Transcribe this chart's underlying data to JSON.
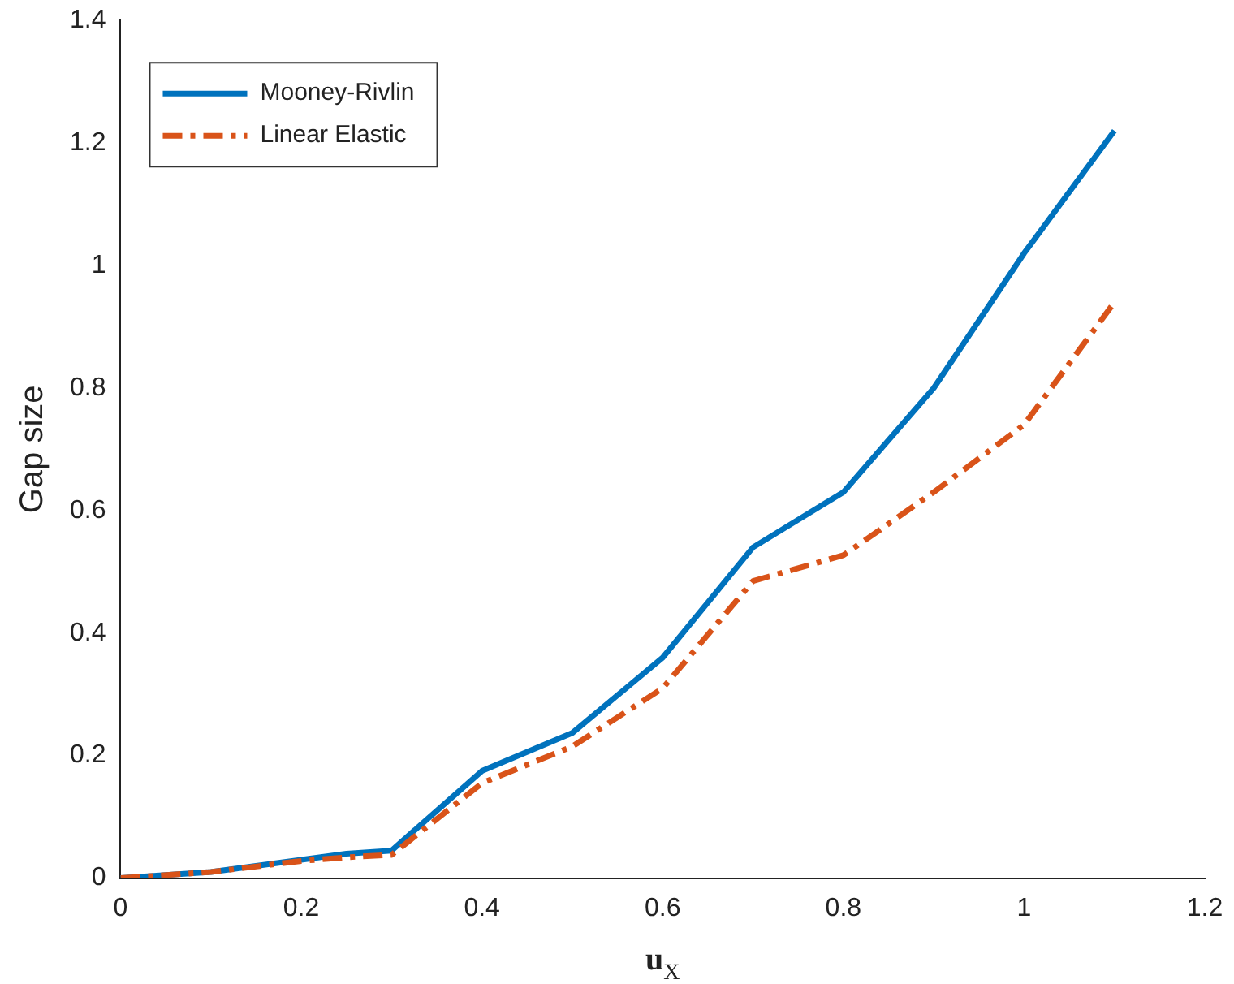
{
  "chart_data": {
    "type": "line",
    "xlabel": "u$_{X}$",
    "ylabel": "Gap size",
    "x": [
      0,
      0.1,
      0.2,
      0.25,
      0.3,
      0.4,
      0.5,
      0.6,
      0.7,
      0.8,
      0.9,
      1.0,
      1.1
    ],
    "series": [
      {
        "name": "Mooney-Rivlin",
        "color": "#0072bd",
        "line_style": "solid",
        "values": [
          0,
          0.01,
          0.03,
          0.04,
          0.045,
          0.175,
          0.237,
          0.36,
          0.54,
          0.63,
          0.8,
          1.02,
          1.22
        ]
      },
      {
        "name": "Linear Elastic",
        "color": "#d95319",
        "line_style": "dashdot",
        "values": [
          0,
          0.01,
          0.028,
          0.034,
          0.038,
          0.155,
          0.215,
          0.31,
          0.485,
          0.527,
          0.63,
          0.74,
          0.94
        ]
      }
    ],
    "xlim": [
      0,
      1.2
    ],
    "xticks": [
      0,
      0.2,
      0.4,
      0.6,
      0.8,
      1,
      1.2
    ],
    "ylim": [
      0,
      1.4
    ],
    "yticks": [
      0,
      0.2,
      0.4,
      0.6,
      0.8,
      1,
      1.2,
      1.4
    ],
    "grid": false,
    "legend": "top left",
    "marker": "none"
  }
}
